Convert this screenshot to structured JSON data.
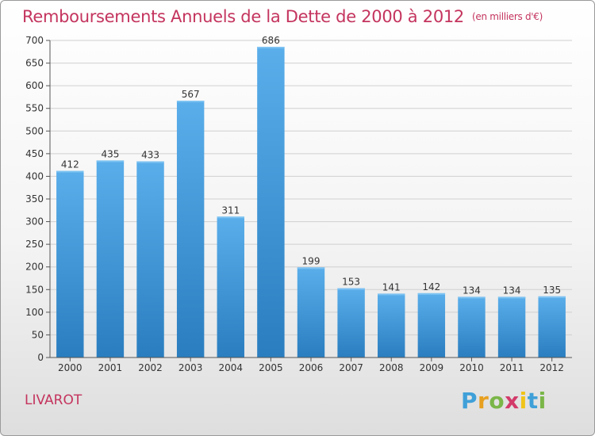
{
  "title": "Remboursements Annuels de la Dette de 2000 à 2012",
  "unit_note": "(en milliers d'€)",
  "commune": "LIVAROT",
  "logo": {
    "letters": [
      "P",
      "r",
      "o",
      "x",
      "i",
      "t",
      "i"
    ],
    "colors": [
      "#3fa0d8",
      "#e8a020",
      "#7ab648",
      "#d23a6a",
      "#f0c419",
      "#3fa0d8",
      "#7ab648"
    ]
  },
  "chart_data": {
    "type": "bar",
    "categories": [
      "2000",
      "2001",
      "2002",
      "2003",
      "2004",
      "2005",
      "2006",
      "2007",
      "2008",
      "2009",
      "2010",
      "2011",
      "2012"
    ],
    "values": [
      412,
      435,
      433,
      567,
      311,
      686,
      199,
      153,
      141,
      142,
      134,
      134,
      135
    ],
    "title": "Remboursements Annuels de la Dette de 2000 à 2012",
    "ylim": [
      0,
      700
    ],
    "yticks": [
      0,
      50,
      100,
      150,
      200,
      250,
      300,
      350,
      400,
      450,
      500,
      550,
      600,
      650,
      700
    ],
    "grid": true,
    "bar_color": "#3d94d6"
  }
}
